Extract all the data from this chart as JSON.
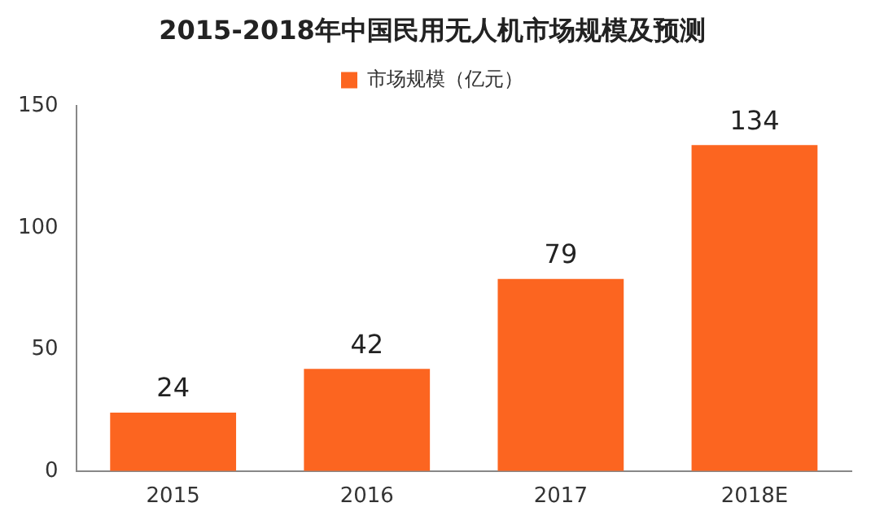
{
  "chart_data": {
    "type": "bar",
    "title": "2015-2018年中国民用无人机市场规模及预测",
    "categories": [
      "2015",
      "2016",
      "2017",
      "2018E"
    ],
    "series": [
      {
        "name": "市场规模（亿元）",
        "color": "#fc6520",
        "values": [
          24,
          42,
          79,
          134
        ]
      }
    ],
    "ylim": [
      0,
      150
    ],
    "yticks": [
      0,
      50,
      100,
      150
    ],
    "grid": false,
    "legend": "top",
    "data_labels": true
  }
}
